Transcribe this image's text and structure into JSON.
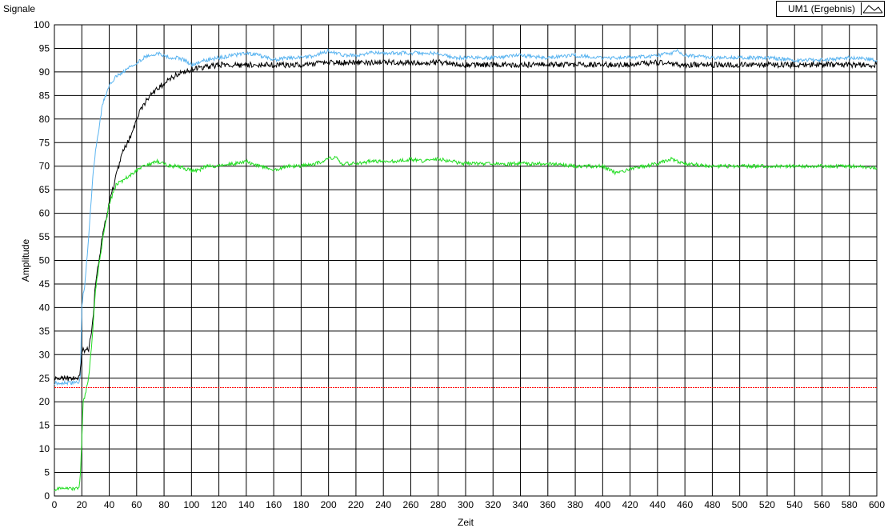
{
  "window": {
    "title": "Signale"
  },
  "legend": {
    "label": "UM1 (Ergebnis)",
    "icon": "line-plot-icon"
  },
  "chart_data": {
    "type": "line",
    "title": "Signale",
    "xlabel": "Zeit",
    "ylabel": "Amplitude",
    "xlim": [
      0,
      600
    ],
    "ylim": [
      0,
      100
    ],
    "xticks": [
      0,
      20,
      40,
      60,
      80,
      100,
      120,
      140,
      160,
      180,
      200,
      220,
      240,
      260,
      280,
      300,
      320,
      340,
      360,
      380,
      400,
      420,
      440,
      460,
      480,
      500,
      520,
      540,
      560,
      580,
      600
    ],
    "yticks": [
      0,
      5,
      10,
      15,
      20,
      25,
      30,
      35,
      40,
      45,
      50,
      55,
      60,
      65,
      70,
      75,
      80,
      85,
      90,
      95,
      100
    ],
    "grid": true,
    "legend_position": "top-right",
    "series": [
      {
        "color": "#5ab4f0",
        "x": [
          0,
          10,
          18,
          19,
          20,
          21,
          22,
          25,
          28,
          30,
          35,
          40,
          45,
          50,
          55,
          60,
          65,
          70,
          75,
          80,
          85,
          90,
          95,
          100,
          110,
          120,
          130,
          140,
          150,
          160,
          170,
          180,
          190,
          200,
          205,
          210,
          220,
          230,
          240,
          250,
          260,
          270,
          280,
          290,
          300,
          320,
          340,
          360,
          380,
          400,
          420,
          440,
          450,
          455,
          460,
          480,
          500,
          520,
          540,
          560,
          580,
          600
        ],
        "y": [
          24,
          24,
          24,
          26,
          40,
          43,
          44,
          55,
          68,
          73,
          83,
          87,
          89,
          90,
          91,
          92,
          93,
          93.5,
          94,
          93.5,
          93,
          93,
          92.5,
          91.5,
          92.5,
          93,
          93.5,
          94,
          93.5,
          92.5,
          93,
          93,
          93.5,
          94.5,
          94,
          93.5,
          93.5,
          94,
          94,
          94,
          94,
          94,
          94,
          93,
          93,
          93,
          93.5,
          93,
          93.5,
          93,
          93,
          93.5,
          94,
          94.5,
          93.5,
          93,
          93,
          93,
          92.5,
          92.5,
          93,
          92.5
        ]
      },
      {
        "color": "#000000",
        "x": [
          0,
          10,
          18,
          19,
          20,
          21,
          22,
          25,
          28,
          30,
          35,
          40,
          45,
          50,
          55,
          60,
          65,
          70,
          75,
          80,
          85,
          90,
          95,
          100,
          110,
          120,
          130,
          140,
          150,
          160,
          180,
          200,
          220,
          240,
          260,
          280,
          300,
          320,
          340,
          360,
          380,
          400,
          420,
          440,
          460,
          480,
          500,
          520,
          540,
          560,
          580,
          600
        ],
        "y": [
          25,
          25,
          25,
          27,
          30,
          31,
          31,
          31,
          37,
          45,
          55,
          62,
          68,
          73,
          76,
          80,
          83,
          85,
          86.5,
          87.5,
          88.5,
          89.5,
          90,
          90.5,
          91,
          91.5,
          91.5,
          91.5,
          91.5,
          91.5,
          91.5,
          92,
          92,
          92,
          92,
          92,
          91.5,
          91.5,
          91.5,
          91.5,
          91.5,
          91.5,
          91.5,
          92,
          91.5,
          91.5,
          91.5,
          91.5,
          91.5,
          91.5,
          91.5,
          91.5
        ]
      },
      {
        "color": "#22dd22",
        "x": [
          0,
          10,
          15,
          18,
          19,
          20,
          21,
          22,
          25,
          28,
          30,
          35,
          40,
          45,
          50,
          55,
          60,
          65,
          70,
          75,
          80,
          85,
          90,
          95,
          100,
          105,
          110,
          120,
          130,
          140,
          150,
          160,
          170,
          180,
          190,
          200,
          205,
          210,
          220,
          230,
          240,
          250,
          260,
          270,
          280,
          290,
          300,
          320,
          340,
          360,
          380,
          400,
          410,
          420,
          440,
          450,
          455,
          460,
          480,
          500,
          520,
          540,
          560,
          580,
          600
        ],
        "y": [
          1.5,
          1.5,
          1.5,
          1.5,
          5,
          12,
          20,
          21,
          25,
          35,
          44,
          54,
          62,
          66,
          67,
          68,
          69,
          70,
          70.5,
          71,
          70.5,
          70,
          70,
          69.5,
          69,
          69,
          70,
          70,
          70.5,
          71,
          70,
          69,
          70,
          70,
          70.5,
          71.5,
          72,
          70.5,
          70.5,
          71,
          71,
          71,
          71.5,
          71,
          71.5,
          71,
          70.5,
          70.5,
          70.5,
          70.5,
          70,
          70,
          68.5,
          69.5,
          70.5,
          71.5,
          71,
          70.5,
          70,
          70,
          70,
          70,
          70,
          70,
          69.5
        ]
      },
      {
        "color": "#ff0000",
        "dashed": true,
        "x": [
          0,
          600
        ],
        "y": [
          23,
          23
        ]
      }
    ]
  }
}
